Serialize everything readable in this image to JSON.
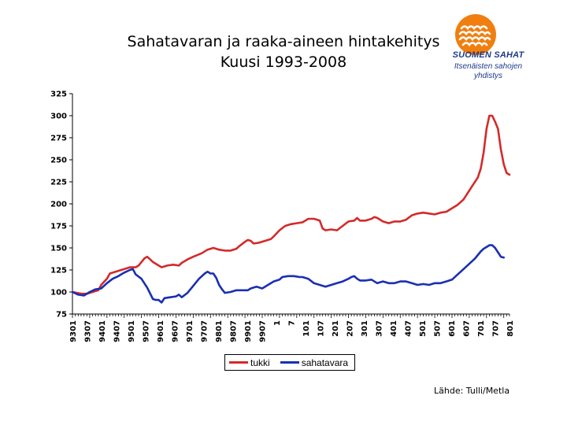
{
  "title": {
    "line1": "Sahatavaran ja raaka-aineen hintakehitys",
    "line2": "Kuusi 1993-2008"
  },
  "logo": {
    "name": "SUOMEN SAHAT",
    "sub1": "Itsenäisten sahojen",
    "sub2": "yhdistys",
    "color": "#f07f10"
  },
  "source": "Lähde: Tulli/Metla",
  "chart_data": {
    "type": "line",
    "title": "Sahatavaran ja raaka-aineen hintakehitys Kuusi 1993-2008",
    "xlabel": "",
    "ylabel": "",
    "ylim": [
      75,
      325
    ],
    "yticks": [
      75,
      100,
      125,
      150,
      175,
      200,
      225,
      250,
      275,
      300,
      325
    ],
    "grid": false,
    "legend": "bottom",
    "x_tick_labels": [
      "9301",
      "9307",
      "9401",
      "9407",
      "9501",
      "9507",
      "9601",
      "9607",
      "9701",
      "9707",
      "9801",
      "9807",
      "9901",
      "9907",
      "1",
      "7",
      "101",
      "107",
      "201",
      "207",
      "301",
      "307",
      "401",
      "407",
      "501",
      "507",
      "601",
      "607",
      "701",
      "707",
      "801"
    ],
    "series": [
      {
        "name": "tukki",
        "color": "#d42a2a",
        "values": [
          [
            0,
            100
          ],
          [
            3,
            98
          ],
          [
            5,
            98
          ],
          [
            7,
            100
          ],
          [
            9,
            102
          ],
          [
            10,
            108
          ],
          [
            12,
            115
          ],
          [
            13,
            121
          ],
          [
            15,
            123
          ],
          [
            16,
            124
          ],
          [
            18,
            126
          ],
          [
            20,
            128
          ],
          [
            22,
            128
          ],
          [
            23,
            130
          ],
          [
            25,
            138
          ],
          [
            26,
            140
          ],
          [
            27,
            137
          ],
          [
            28,
            134
          ],
          [
            30,
            130
          ],
          [
            31,
            128
          ],
          [
            33,
            130
          ],
          [
            35,
            131
          ],
          [
            37,
            130
          ],
          [
            38,
            133
          ],
          [
            40,
            137
          ],
          [
            42,
            140
          ],
          [
            45,
            144
          ],
          [
            47,
            148
          ],
          [
            49,
            150
          ],
          [
            51,
            148
          ],
          [
            53,
            147
          ],
          [
            55,
            147
          ],
          [
            57,
            149
          ],
          [
            58,
            152
          ],
          [
            60,
            157
          ],
          [
            61,
            159
          ],
          [
            62,
            158
          ],
          [
            63,
            155
          ],
          [
            65,
            156
          ],
          [
            67,
            158
          ],
          [
            69,
            160
          ],
          [
            70,
            163
          ],
          [
            72,
            170
          ],
          [
            74,
            175
          ],
          [
            76,
            177
          ],
          [
            78,
            178
          ],
          [
            80,
            179
          ],
          [
            81,
            181
          ],
          [
            82,
            183
          ],
          [
            84,
            183
          ],
          [
            86,
            181
          ],
          [
            87,
            172
          ],
          [
            88,
            170
          ],
          [
            90,
            171
          ],
          [
            92,
            170
          ],
          [
            94,
            175
          ],
          [
            96,
            180
          ],
          [
            98,
            181
          ],
          [
            99,
            184
          ],
          [
            100,
            181
          ],
          [
            102,
            181
          ],
          [
            104,
            183
          ],
          [
            105,
            185
          ],
          [
            106,
            184
          ],
          [
            108,
            180
          ],
          [
            110,
            178
          ],
          [
            112,
            180
          ],
          [
            114,
            180
          ],
          [
            116,
            182
          ],
          [
            118,
            187
          ],
          [
            120,
            189
          ],
          [
            122,
            190
          ],
          [
            124,
            189
          ],
          [
            126,
            188
          ],
          [
            128,
            190
          ],
          [
            130,
            191
          ],
          [
            132,
            195
          ],
          [
            134,
            199
          ],
          [
            136,
            205
          ],
          [
            138,
            215
          ],
          [
            139,
            220
          ],
          [
            141,
            230
          ],
          [
            142,
            240
          ],
          [
            143,
            258
          ],
          [
            144,
            285
          ],
          [
            145,
            300
          ],
          [
            146,
            300
          ],
          [
            147,
            293
          ],
          [
            148,
            285
          ],
          [
            149,
            262
          ],
          [
            150,
            245
          ],
          [
            151,
            235
          ],
          [
            152,
            233
          ]
        ]
      },
      {
        "name": "sahatavara",
        "color": "#1a2fb3",
        "values": [
          [
            0,
            100
          ],
          [
            2,
            97
          ],
          [
            4,
            96
          ],
          [
            6,
            100
          ],
          [
            8,
            103
          ],
          [
            10,
            104
          ],
          [
            12,
            110
          ],
          [
            14,
            115
          ],
          [
            16,
            118
          ],
          [
            18,
            122
          ],
          [
            20,
            125
          ],
          [
            21,
            126
          ],
          [
            22,
            120
          ],
          [
            24,
            115
          ],
          [
            26,
            105
          ],
          [
            28,
            92
          ],
          [
            29,
            91
          ],
          [
            30,
            91
          ],
          [
            31,
            88
          ],
          [
            32,
            93
          ],
          [
            34,
            94
          ],
          [
            36,
            95
          ],
          [
            37,
            97
          ],
          [
            38,
            94
          ],
          [
            40,
            99
          ],
          [
            42,
            107
          ],
          [
            44,
            115
          ],
          [
            46,
            121
          ],
          [
            47,
            123
          ],
          [
            48,
            121
          ],
          [
            49,
            121
          ],
          [
            50,
            116
          ],
          [
            51,
            108
          ],
          [
            52,
            103
          ],
          [
            53,
            99
          ],
          [
            55,
            100
          ],
          [
            57,
            102
          ],
          [
            59,
            102
          ],
          [
            61,
            102
          ],
          [
            62,
            104
          ],
          [
            64,
            106
          ],
          [
            66,
            104
          ],
          [
            68,
            108
          ],
          [
            70,
            112
          ],
          [
            72,
            114
          ],
          [
            73,
            117
          ],
          [
            75,
            118
          ],
          [
            77,
            118
          ],
          [
            79,
            117
          ],
          [
            80,
            117
          ],
          [
            82,
            115
          ],
          [
            84,
            110
          ],
          [
            86,
            108
          ],
          [
            88,
            106
          ],
          [
            90,
            108
          ],
          [
            92,
            110
          ],
          [
            94,
            112
          ],
          [
            96,
            115
          ],
          [
            97,
            117
          ],
          [
            98,
            118
          ],
          [
            99,
            115
          ],
          [
            100,
            113
          ],
          [
            102,
            113
          ],
          [
            104,
            114
          ],
          [
            106,
            110
          ],
          [
            108,
            112
          ],
          [
            110,
            110
          ],
          [
            112,
            110
          ],
          [
            114,
            112
          ],
          [
            116,
            112
          ],
          [
            118,
            110
          ],
          [
            120,
            108
          ],
          [
            122,
            109
          ],
          [
            124,
            108
          ],
          [
            126,
            110
          ],
          [
            128,
            110
          ],
          [
            130,
            112
          ],
          [
            132,
            114
          ],
          [
            134,
            120
          ],
          [
            136,
            126
          ],
          [
            138,
            132
          ],
          [
            140,
            138
          ],
          [
            141,
            142
          ],
          [
            142,
            146
          ],
          [
            143,
            149
          ],
          [
            144,
            151
          ],
          [
            145,
            153
          ],
          [
            146,
            153
          ],
          [
            147,
            150
          ],
          [
            148,
            145
          ],
          [
            149,
            140
          ],
          [
            150,
            139
          ]
        ]
      }
    ]
  }
}
